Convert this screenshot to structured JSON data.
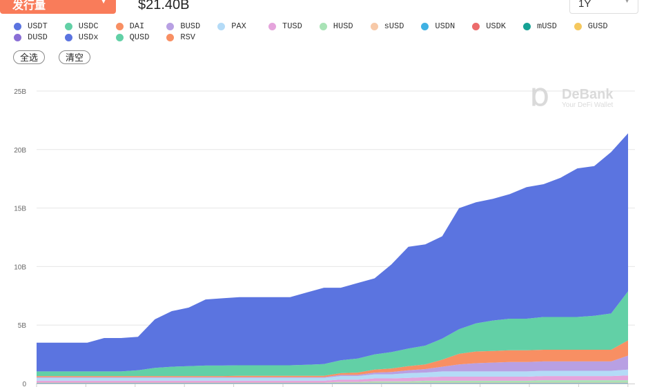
{
  "header": {
    "metric_label": "发行量",
    "total": "$21.40B",
    "range": "1Y"
  },
  "buttons": {
    "select_all": "全选",
    "clear": "清空"
  },
  "watermark": {
    "brand": "DeBank",
    "tagline": "Your DeFi Wallet"
  },
  "chart_data": {
    "type": "area",
    "stacked": true,
    "title": "",
    "xlabel": "",
    "ylabel": "",
    "ylim": [
      0,
      25000000000
    ],
    "y_ticks": [
      "0",
      "5B",
      "10B",
      "15B",
      "20B",
      "25B"
    ],
    "y_tick_values": [
      0,
      5,
      10,
      15,
      20,
      25
    ],
    "unit": "B",
    "grid": true,
    "legend_position": "top-left",
    "x_points": 36,
    "series": [
      {
        "name": "USDT",
        "color": "#5b74e0",
        "values": [
          2.45,
          2.45,
          2.45,
          2.45,
          2.85,
          2.85,
          2.85,
          4.15,
          4.75,
          5.0,
          5.65,
          5.75,
          5.83,
          5.83,
          5.83,
          5.83,
          6.18,
          6.53,
          6.2,
          6.45,
          6.5,
          7.5,
          8.7,
          8.65,
          8.75,
          10.35,
          10.35,
          10.4,
          10.65,
          11.25,
          11.35,
          11.9,
          12.7,
          12.8,
          13.8,
          13.5
        ]
      },
      {
        "name": "USDC",
        "color": "#62d0a6",
        "values": [
          0.4,
          0.4,
          0.4,
          0.4,
          0.4,
          0.4,
          0.5,
          0.7,
          0.8,
          0.85,
          0.9,
          0.9,
          0.9,
          0.9,
          0.9,
          0.9,
          0.95,
          1.0,
          1.1,
          1.2,
          1.3,
          1.4,
          1.5,
          1.6,
          1.8,
          2.1,
          2.4,
          2.6,
          2.7,
          2.7,
          2.8,
          2.8,
          2.8,
          2.9,
          3.1,
          4.2
        ]
      },
      {
        "name": "DAI",
        "color": "#f88f63",
        "values": [
          0.1,
          0.1,
          0.1,
          0.1,
          0.1,
          0.1,
          0.1,
          0.1,
          0.1,
          0.1,
          0.1,
          0.1,
          0.12,
          0.12,
          0.12,
          0.12,
          0.12,
          0.12,
          0.15,
          0.2,
          0.25,
          0.3,
          0.35,
          0.4,
          0.6,
          0.9,
          1.0,
          1.0,
          1.0,
          1.0,
          1.0,
          1.0,
          1.0,
          1.0,
          1.0,
          1.3
        ]
      },
      {
        "name": "BUSD",
        "color": "#b8a0e3",
        "values": [
          0.05,
          0.05,
          0.05,
          0.05,
          0.05,
          0.05,
          0.05,
          0.05,
          0.05,
          0.05,
          0.05,
          0.05,
          0.05,
          0.05,
          0.05,
          0.05,
          0.05,
          0.05,
          0.1,
          0.1,
          0.15,
          0.2,
          0.25,
          0.3,
          0.4,
          0.6,
          0.7,
          0.75,
          0.8,
          0.8,
          0.8,
          0.8,
          0.8,
          0.8,
          0.8,
          1.2
        ]
      },
      {
        "name": "PAX",
        "color": "#b4dbf7",
        "values": [
          0.25,
          0.25,
          0.25,
          0.25,
          0.25,
          0.25,
          0.25,
          0.25,
          0.25,
          0.25,
          0.25,
          0.25,
          0.25,
          0.25,
          0.25,
          0.25,
          0.25,
          0.25,
          0.3,
          0.3,
          0.35,
          0.35,
          0.4,
          0.4,
          0.45,
          0.45,
          0.45,
          0.45,
          0.45,
          0.45,
          0.45,
          0.45,
          0.45,
          0.45,
          0.45,
          0.5
        ]
      },
      {
        "name": "TUSD",
        "color": "#e5a4dc",
        "values": [
          0.15,
          0.15,
          0.15,
          0.15,
          0.15,
          0.15,
          0.15,
          0.15,
          0.15,
          0.15,
          0.15,
          0.15,
          0.15,
          0.15,
          0.15,
          0.15,
          0.15,
          0.15,
          0.2,
          0.2,
          0.25,
          0.25,
          0.3,
          0.3,
          0.35,
          0.35,
          0.35,
          0.35,
          0.35,
          0.35,
          0.35,
          0.35,
          0.35,
          0.35,
          0.35,
          0.4
        ]
      },
      {
        "name": "HUSD",
        "color": "#a9e3b6",
        "values": [
          0,
          0,
          0,
          0,
          0,
          0,
          0,
          0,
          0,
          0,
          0,
          0,
          0,
          0,
          0,
          0,
          0,
          0,
          0.05,
          0.05,
          0.1,
          0.1,
          0.1,
          0.15,
          0.15,
          0.15,
          0.15,
          0.15,
          0.15,
          0.15,
          0.2,
          0.2,
          0.2,
          0.2,
          0.2,
          0.2
        ]
      },
      {
        "name": "sUSD",
        "color": "#f7c9a8",
        "values": [
          0.03,
          0.03,
          0.03,
          0.03,
          0.03,
          0.03,
          0.03,
          0.03,
          0.03,
          0.03,
          0.03,
          0.03,
          0.03,
          0.03,
          0.03,
          0.03,
          0.03,
          0.03,
          0.03,
          0.03,
          0.03,
          0.03,
          0.03,
          0.03,
          0.03,
          0.03,
          0.03,
          0.03,
          0.03,
          0.03,
          0.03,
          0.03,
          0.03,
          0.03,
          0.03,
          0.03
        ]
      },
      {
        "name": "USDN",
        "color": "#3fb1e3",
        "values": [
          0.01,
          0.01,
          0.01,
          0.01,
          0.01,
          0.01,
          0.01,
          0.01,
          0.01,
          0.01,
          0.01,
          0.01,
          0.01,
          0.01,
          0.01,
          0.01,
          0.01,
          0.01,
          0.01,
          0.01,
          0.01,
          0.01,
          0.01,
          0.01,
          0.01,
          0.01,
          0.01,
          0.01,
          0.01,
          0.01,
          0.01,
          0.01,
          0.01,
          0.01,
          0.01,
          0.01
        ]
      },
      {
        "name": "USDK",
        "color": "#ec6b6b",
        "values": [
          0.02,
          0.02,
          0.02,
          0.02,
          0.02,
          0.02,
          0.02,
          0.02,
          0.02,
          0.02,
          0.02,
          0.02,
          0.02,
          0.02,
          0.02,
          0.02,
          0.02,
          0.02,
          0.02,
          0.02,
          0.02,
          0.02,
          0.02,
          0.02,
          0.02,
          0.02,
          0.02,
          0.02,
          0.02,
          0.02,
          0.02,
          0.02,
          0.02,
          0.02,
          0.02,
          0.02
        ]
      },
      {
        "name": "mUSD",
        "color": "#16a295",
        "values": [
          0.01,
          0.01,
          0.01,
          0.01,
          0.01,
          0.01,
          0.01,
          0.01,
          0.01,
          0.01,
          0.01,
          0.01,
          0.01,
          0.01,
          0.01,
          0.01,
          0.01,
          0.01,
          0.01,
          0.01,
          0.01,
          0.01,
          0.01,
          0.01,
          0.01,
          0.01,
          0.01,
          0.01,
          0.01,
          0.01,
          0.01,
          0.01,
          0.01,
          0.01,
          0.01,
          0.01
        ]
      },
      {
        "name": "GUSD",
        "color": "#f5c85e",
        "values": [
          0.01,
          0.01,
          0.01,
          0.01,
          0.01,
          0.01,
          0.01,
          0.01,
          0.01,
          0.01,
          0.01,
          0.01,
          0.01,
          0.01,
          0.01,
          0.01,
          0.01,
          0.01,
          0.01,
          0.01,
          0.01,
          0.01,
          0.01,
          0.01,
          0.01,
          0.01,
          0.01,
          0.01,
          0.01,
          0.01,
          0.01,
          0.01,
          0.01,
          0.01,
          0.01,
          0.01
        ]
      },
      {
        "name": "DUSD",
        "color": "#8a6fd6",
        "values": [
          0,
          0,
          0,
          0,
          0,
          0,
          0,
          0,
          0,
          0,
          0,
          0,
          0,
          0,
          0,
          0,
          0,
          0,
          0,
          0,
          0,
          0,
          0,
          0,
          0,
          0,
          0,
          0,
          0,
          0,
          0,
          0,
          0,
          0,
          0,
          0
        ]
      },
      {
        "name": "USDx",
        "color": "#5b74e0",
        "values": [
          0.01,
          0.01,
          0.01,
          0.01,
          0.01,
          0.01,
          0.01,
          0.01,
          0.01,
          0.01,
          0.01,
          0.01,
          0.01,
          0.01,
          0.01,
          0.01,
          0.01,
          0.01,
          0.01,
          0.01,
          0.01,
          0.01,
          0.01,
          0.01,
          0.01,
          0.01,
          0.01,
          0.01,
          0.01,
          0.01,
          0.01,
          0.01,
          0.01,
          0.01,
          0.01,
          0.01
        ]
      },
      {
        "name": "QUSD",
        "color": "#62d0a6",
        "values": [
          0,
          0,
          0,
          0,
          0,
          0,
          0,
          0,
          0,
          0,
          0,
          0,
          0,
          0,
          0,
          0,
          0,
          0,
          0,
          0,
          0,
          0,
          0,
          0,
          0,
          0,
          0,
          0,
          0,
          0,
          0,
          0,
          0,
          0,
          0,
          0
        ]
      },
      {
        "name": "RSV",
        "color": "#f88f63",
        "values": [
          0,
          0,
          0,
          0,
          0,
          0,
          0,
          0,
          0,
          0,
          0,
          0,
          0,
          0,
          0,
          0,
          0,
          0,
          0,
          0,
          0,
          0,
          0,
          0,
          0,
          0,
          0,
          0,
          0,
          0,
          0,
          0,
          0,
          0,
          0,
          0
        ]
      }
    ]
  }
}
